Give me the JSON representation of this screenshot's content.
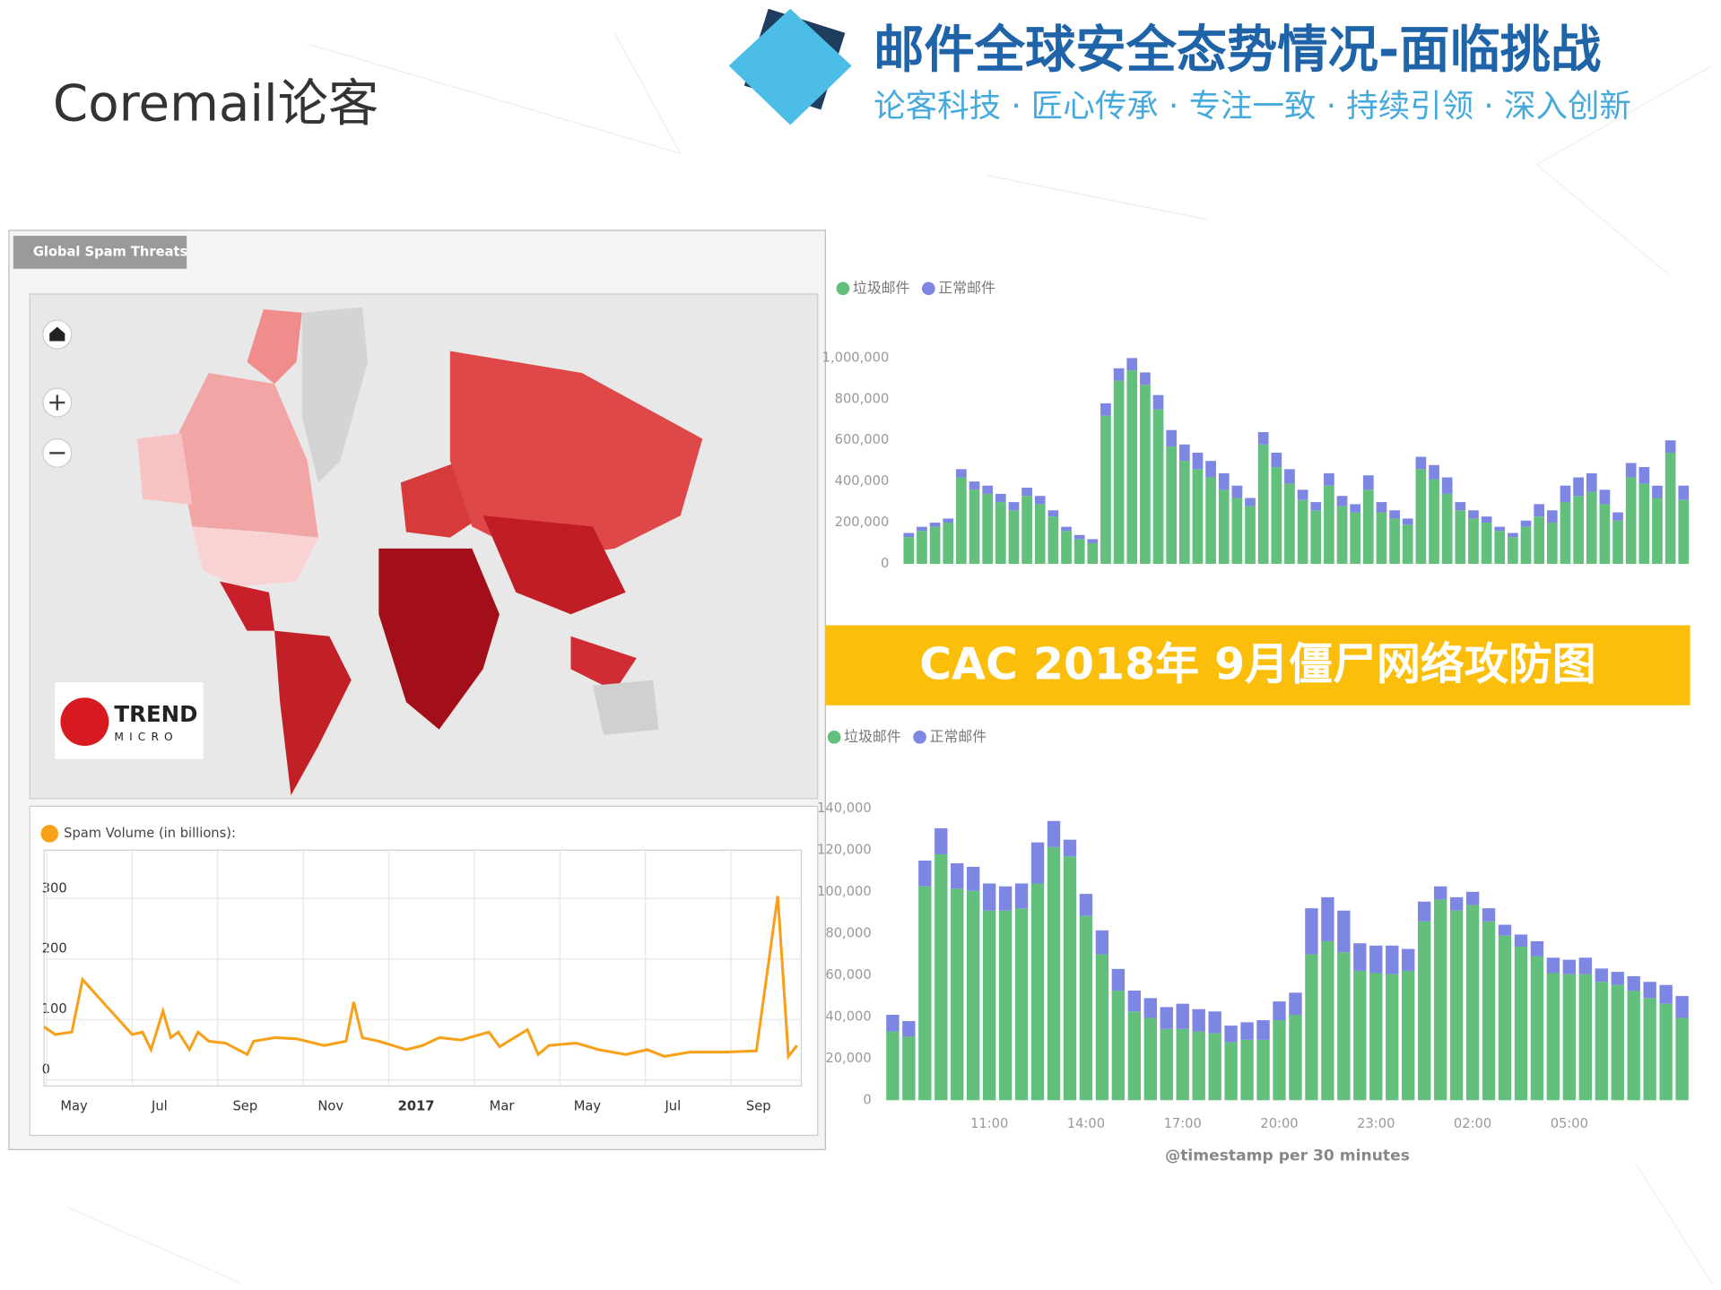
{
  "header": {
    "logo": "Coremail论客",
    "title": "邮件全球安全态势情况-面临挑战",
    "subtitle": "论客科技 · 匠心传承 · 专注一致 · 持续引领 · 深入创新"
  },
  "map_panel": {
    "tab": "Global Spam Threats",
    "brand": [
      "TREND",
      "MICRO"
    ]
  },
  "banner": "CAC 2018年 9月僵尸网络攻防图",
  "chart_data": [
    {
      "type": "line",
      "legend_label": "Spam Volume (in billions):",
      "color": "#f7a11a",
      "grid": true,
      "x": [
        -0.7,
        -0.44,
        -0.05,
        0.2,
        0.72,
        1.36,
        1.6,
        1.8,
        2.08,
        2.26,
        2.44,
        2.7,
        2.9,
        3.15,
        3.54,
        4.05,
        4.2,
        4.7,
        5.2,
        5.85,
        6.36,
        6.54,
        6.74,
        7.13,
        7.77,
        8.15,
        8.54,
        9.05,
        9.7,
        9.95,
        10.6,
        10.85,
        11.1,
        11.74,
        12.26,
        12.9,
        13.4,
        13.8,
        14.4,
        15.2,
        15.95,
        16.45,
        16.7,
        16.9
      ],
      "values": [
        88,
        75,
        79,
        166,
        125,
        75,
        79,
        50,
        114,
        70,
        79,
        50,
        79,
        64,
        61,
        42,
        64,
        70,
        68,
        57,
        64,
        129,
        70,
        64,
        50,
        57,
        70,
        66,
        79,
        55,
        83,
        42,
        57,
        61,
        50,
        42,
        50,
        39,
        46,
        46,
        48,
        304,
        39,
        57
      ],
      "xlim": [
        -0.7,
        17
      ],
      "xticks": [
        {
          "value": 0,
          "label": "May"
        },
        {
          "value": 2,
          "label": "Jul"
        },
        {
          "value": 4,
          "label": "Sep"
        },
        {
          "value": 6,
          "label": "Nov"
        },
        {
          "value": 8,
          "label": "2017"
        },
        {
          "value": 10,
          "label": "Mar"
        },
        {
          "value": 12,
          "label": "May"
        },
        {
          "value": 14,
          "label": "Jul"
        },
        {
          "value": 16,
          "label": "Sep"
        }
      ],
      "ylim": [
        -10,
        380
      ],
      "yticks": [
        0,
        100,
        200,
        300
      ]
    },
    {
      "type": "stacked_bar",
      "grid": false,
      "series": [
        {
          "name": "垃圾邮件",
          "color": "#62c07c",
          "values": [
            130000,
            160000,
            180000,
            200000,
            420000,
            360000,
            340000,
            300000,
            260000,
            330000,
            290000,
            230000,
            160000,
            120000,
            100000,
            720000,
            890000,
            940000,
            870000,
            750000,
            570000,
            500000,
            460000,
            420000,
            360000,
            320000,
            280000,
            580000,
            470000,
            390000,
            310000,
            260000,
            380000,
            280000,
            250000,
            360000,
            250000,
            220000,
            190000,
            460000,
            410000,
            340000,
            260000,
            220000,
            200000,
            160000,
            130000,
            180000,
            230000,
            200000,
            300000,
            330000,
            350000,
            290000,
            210000,
            420000,
            390000,
            320000,
            540000,
            310000
          ]
        },
        {
          "name": "正常邮件",
          "color": "#7d87e3",
          "values": [
            20000,
            20000,
            20000,
            20000,
            40000,
            40000,
            40000,
            40000,
            40000,
            40000,
            40000,
            30000,
            20000,
            20000,
            20000,
            60000,
            60000,
            60000,
            60000,
            70000,
            80000,
            80000,
            80000,
            80000,
            80000,
            60000,
            40000,
            60000,
            70000,
            70000,
            50000,
            40000,
            60000,
            50000,
            40000,
            70000,
            50000,
            40000,
            30000,
            60000,
            70000,
            80000,
            40000,
            40000,
            30000,
            20000,
            20000,
            30000,
            60000,
            60000,
            80000,
            90000,
            90000,
            70000,
            40000,
            70000,
            80000,
            60000,
            60000,
            70000
          ]
        }
      ],
      "ylim": [
        0,
        1050000
      ],
      "yticks": [
        0,
        {
          "value": 200000,
          "label": "200,000"
        },
        {
          "value": 400000,
          "label": "400,000"
        },
        {
          "value": 600000,
          "label": "600,000"
        },
        {
          "value": 800000,
          "label": "800,000"
        },
        {
          "value": 1000000,
          "label": "1,000,000"
        }
      ]
    },
    {
      "type": "stacked_bar",
      "grid": false,
      "x_label": "@timestamp per 30 minutes",
      "categories": [
        null,
        null,
        null,
        null,
        null,
        null,
        "11:00",
        null,
        null,
        null,
        null,
        null,
        "14:00",
        null,
        null,
        null,
        null,
        null,
        "17:00",
        null,
        null,
        null,
        null,
        null,
        "20:00",
        null,
        null,
        null,
        null,
        null,
        "23:00",
        null,
        null,
        null,
        null,
        null,
        "02:00",
        null,
        null,
        null,
        null,
        null,
        "05:00",
        null,
        null,
        null,
        null,
        null,
        null,
        null
      ],
      "series": [
        {
          "name": "垃圾邮件",
          "color": "#62c07c",
          "values": [
            33000,
            30500,
            102600,
            118000,
            101500,
            100500,
            91000,
            91000,
            92000,
            104000,
            121500,
            117000,
            88400,
            70000,
            52600,
            42600,
            39500,
            34200,
            34200,
            33000,
            32100,
            27900,
            29000,
            29000,
            38400,
            41000,
            70000,
            76300,
            71000,
            62100,
            61000,
            60500,
            62100,
            85800,
            96300,
            91000,
            93700,
            85800,
            79000,
            73700,
            69000,
            61000,
            60500,
            60500,
            56800,
            55300,
            52600,
            49000,
            46300,
            39500
          ]
        },
        {
          "name": "正常邮件",
          "color": "#7d87e3",
          "values": [
            8000,
            7500,
            12400,
            12500,
            12200,
            11500,
            13000,
            11600,
            12000,
            19700,
            12500,
            8000,
            10600,
            11500,
            10400,
            10000,
            9500,
            10500,
            12100,
            10700,
            10500,
            7900,
            8400,
            9400,
            9000,
            10600,
            22100,
            21100,
            20000,
            13200,
            13200,
            13700,
            10500,
            9500,
            6300,
            6400,
            6300,
            6300,
            5200,
            5800,
            7300,
            7400,
            6900,
            7900,
            6400,
            6300,
            6900,
            7800,
            9000,
            10500
          ]
        }
      ],
      "ylim": [
        0,
        150000
      ],
      "yticks": [
        0,
        {
          "value": 20000,
          "label": "20,000"
        },
        {
          "value": 40000,
          "label": "40,000"
        },
        {
          "value": 60000,
          "label": "60,000"
        },
        {
          "value": 80000,
          "label": "80,000"
        },
        {
          "value": 100000,
          "label": "100,000"
        },
        {
          "value": 120000,
          "label": "120,000"
        },
        {
          "value": 140000,
          "label": "140,000"
        }
      ]
    }
  ]
}
